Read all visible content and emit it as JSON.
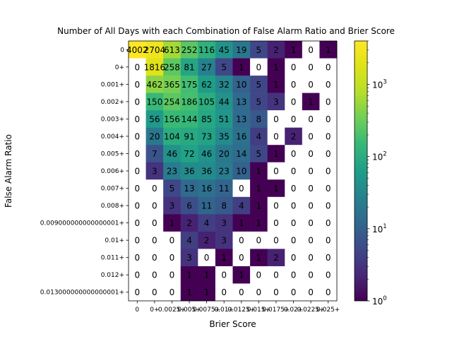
{
  "chart_data": {
    "type": "heatmap",
    "title": "Number of All Days with each Combination of False Alarm Ratio and Brier Score",
    "xlabel": "Brier Score",
    "ylabel": "False Alarm Ratio",
    "x_categories": [
      "0",
      "0+",
      "0.0025+",
      "0.005+",
      "0.0075+",
      "0.01+",
      "0.0125+",
      "0.015+",
      "0.0175+",
      "0.02+",
      "0.0225+",
      "0.025+"
    ],
    "x_tick_labels": [
      "0",
      "0+",
      "0.0025+",
      "0.005+",
      "0.0075+",
      "0.01+",
      "0.0125+",
      "0.015+",
      "0.0175+",
      "0.02+",
      "0.0225+",
      "0.025+"
    ],
    "y_categories": [
      "0",
      "0+",
      "0.001+",
      "0.002+",
      "0.003+",
      "0.004+",
      "0.005+",
      "0.006+",
      "0.007+",
      "0.008+",
      "0.009000000000000001+",
      "0.01+",
      "0.011+",
      "0.012+",
      "0.013000000000000001+"
    ],
    "values": [
      [
        4002,
        2704,
        613,
        252,
        116,
        45,
        19,
        5,
        2,
        1,
        0,
        1
      ],
      [
        0,
        1816,
        258,
        81,
        27,
        5,
        1,
        0,
        1,
        0,
        0,
        0
      ],
      [
        0,
        462,
        365,
        175,
        62,
        32,
        10,
        5,
        1,
        0,
        0,
        0
      ],
      [
        0,
        150,
        254,
        186,
        105,
        44,
        13,
        5,
        3,
        0,
        1,
        0
      ],
      [
        0,
        56,
        156,
        144,
        85,
        51,
        13,
        8,
        0,
        0,
        0,
        0
      ],
      [
        0,
        20,
        104,
        91,
        73,
        35,
        16,
        4,
        0,
        2,
        0,
        0
      ],
      [
        0,
        7,
        46,
        72,
        46,
        20,
        14,
        5,
        1,
        0,
        0,
        0
      ],
      [
        0,
        3,
        23,
        36,
        36,
        23,
        10,
        1,
        0,
        0,
        0,
        0
      ],
      [
        0,
        0,
        5,
        13,
        16,
        11,
        0,
        1,
        1,
        0,
        0,
        0
      ],
      [
        0,
        0,
        3,
        6,
        11,
        8,
        4,
        1,
        0,
        0,
        0,
        0
      ],
      [
        0,
        0,
        1,
        2,
        4,
        3,
        1,
        1,
        0,
        0,
        0,
        0
      ],
      [
        0,
        0,
        0,
        4,
        2,
        3,
        0,
        0,
        0,
        0,
        0,
        0
      ],
      [
        0,
        0,
        0,
        3,
        0,
        1,
        0,
        1,
        2,
        0,
        0,
        0
      ],
      [
        0,
        0,
        0,
        1,
        1,
        0,
        1,
        0,
        0,
        0,
        0,
        0
      ],
      [
        0,
        0,
        0,
        1,
        1,
        0,
        0,
        0,
        0,
        0,
        0,
        0
      ]
    ],
    "colormap": "viridis",
    "color_scale": "log",
    "color_range": [
      1,
      4002
    ],
    "colorbar_ticks": [
      {
        "value": 1,
        "base": "10",
        "exp": "0"
      },
      {
        "value": 10,
        "base": "10",
        "exp": "1"
      },
      {
        "value": 100,
        "base": "10",
        "exp": "2"
      },
      {
        "value": 1000,
        "base": "10",
        "exp": "3"
      }
    ],
    "zero_color": "#ffffff"
  }
}
